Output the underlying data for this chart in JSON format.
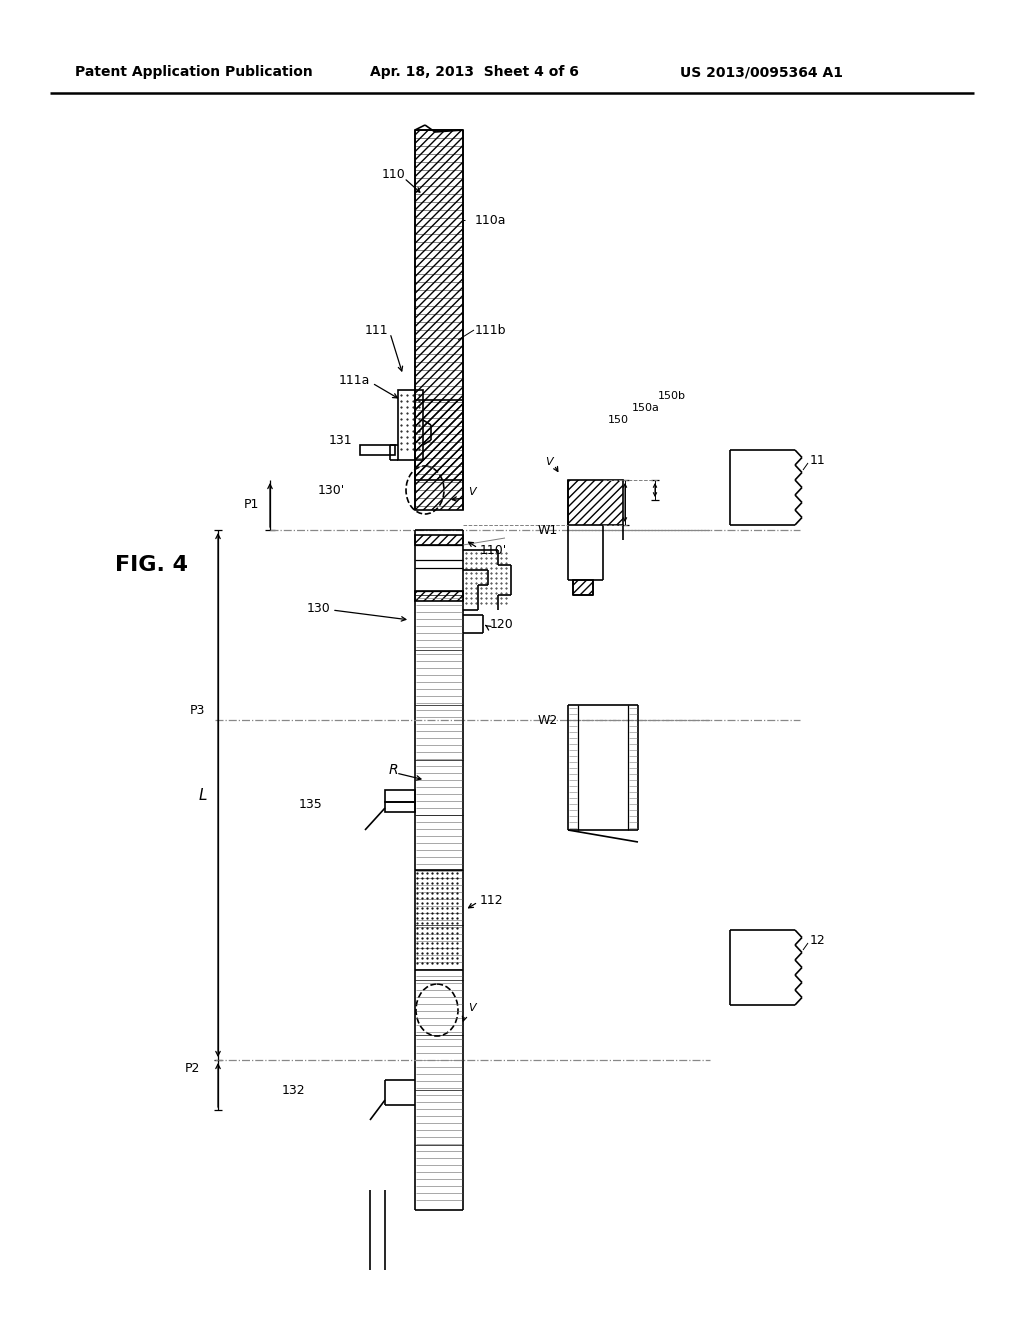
{
  "header_left": "Patent Application Publication",
  "header_mid": "Apr. 18, 2013  Sheet 4 of 6",
  "header_right": "US 2013/0095364 A1",
  "background": "#ffffff"
}
